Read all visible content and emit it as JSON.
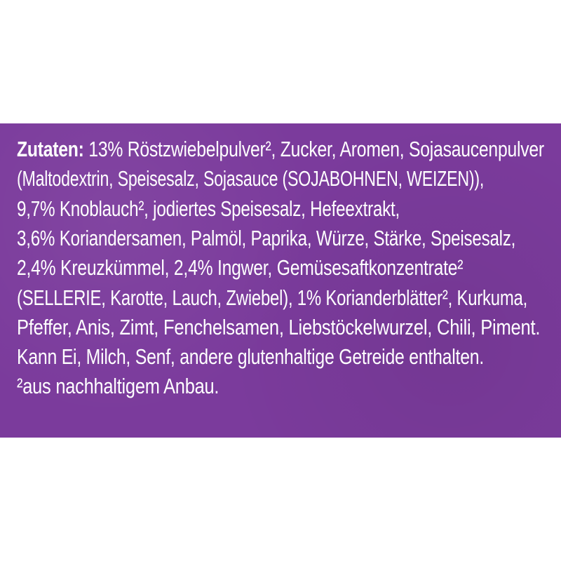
{
  "ingredients": {
    "heading": "Zutaten:",
    "lines": [
      " 13% Röstzwiebelpulver², Zucker, Aromen, Sojasaucenpulver",
      "(Maltodextrin, Speisesalz, Sojasauce (SOJABOHNEN, WEIZEN)),",
      "9,7% Knoblauch², jodiertes Speisesalz, Hefeextrakt,",
      "3,6% Koriandersamen, Palmöl, Paprika, Würze, Stärke, Speisesalz,",
      "2,4% Kreuzkümmel, 2,4% Ingwer, Gemüsesaftkonzentrate²",
      "(SELLERIE, Karotte, Lauch, Zwiebel), 1% Korianderblätter², Kurkuma,",
      "Pfeffer, Anis, Zimt, Fenchelsamen, Liebstöckelwurzel, Chili, Piment.",
      "Kann Ei, Milch, Senf, andere glutenhaltige Getreide enthalten.",
      "²aus nachhaltigem Anbau."
    ]
  },
  "colors": {
    "background": "#7b3b9c",
    "text": "#ffffff"
  }
}
